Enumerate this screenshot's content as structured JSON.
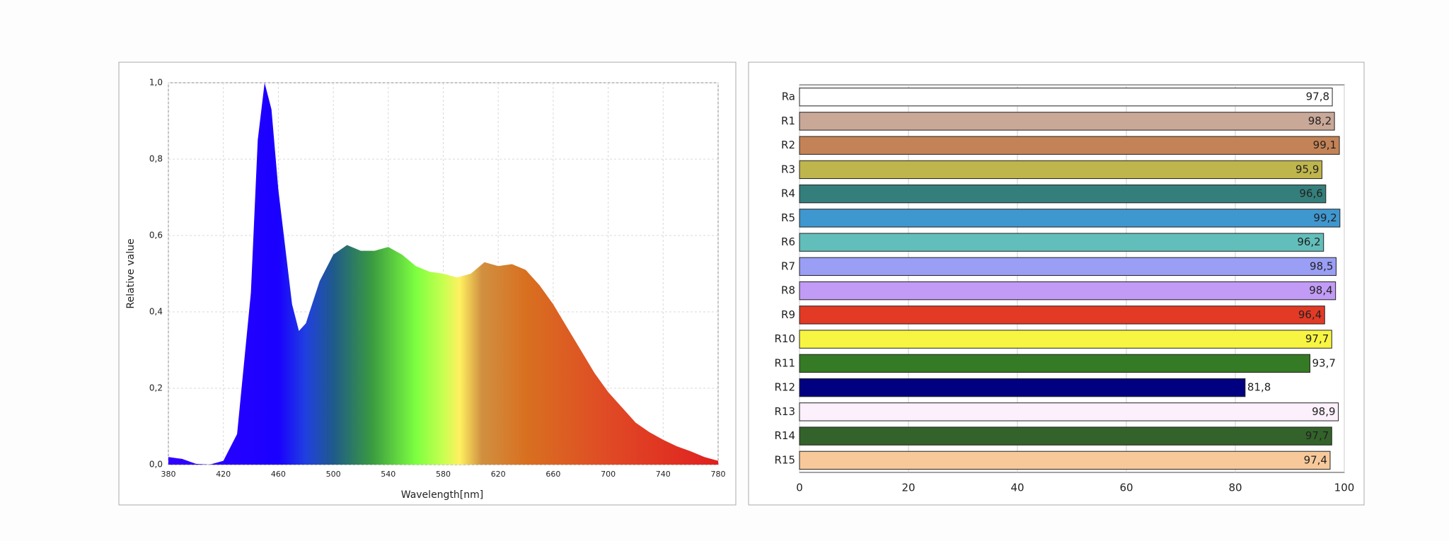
{
  "chart_data": [
    {
      "type": "area",
      "xlabel": "Wavelength[nm]",
      "ylabel": "Relative value",
      "x": [
        380,
        390,
        400,
        410,
        420,
        430,
        440,
        445,
        450,
        455,
        460,
        470,
        475,
        480,
        490,
        500,
        510,
        520,
        530,
        540,
        550,
        560,
        570,
        580,
        590,
        600,
        610,
        620,
        630,
        640,
        650,
        660,
        670,
        680,
        690,
        700,
        710,
        720,
        730,
        740,
        750,
        760,
        770,
        780
      ],
      "values": [
        0.02,
        0.015,
        0.002,
        0.0,
        0.01,
        0.08,
        0.45,
        0.85,
        1.0,
        0.93,
        0.72,
        0.42,
        0.35,
        0.37,
        0.48,
        0.55,
        0.575,
        0.56,
        0.56,
        0.57,
        0.55,
        0.52,
        0.505,
        0.5,
        0.49,
        0.5,
        0.53,
        0.52,
        0.525,
        0.51,
        0.47,
        0.42,
        0.36,
        0.3,
        0.24,
        0.19,
        0.15,
        0.11,
        0.085,
        0.065,
        0.048,
        0.035,
        0.02,
        0.01
      ],
      "xlim": [
        380,
        780
      ],
      "xticks": [
        380,
        420,
        460,
        500,
        540,
        580,
        620,
        660,
        700,
        740,
        780
      ],
      "ylim": [
        0,
        1
      ],
      "yticks": [
        {
          "value": 0,
          "label": "0,0"
        },
        {
          "value": 0.2,
          "label": "0,2"
        },
        {
          "value": 0.4,
          "label": "0,4"
        },
        {
          "value": 0.6,
          "label": "0,6"
        },
        {
          "value": 0.8,
          "label": "0,8"
        },
        {
          "value": 1,
          "label": "1,0"
        }
      ],
      "grid": true
    },
    {
      "type": "hbar",
      "categories": [
        "Ra",
        "R1",
        "R2",
        "R3",
        "R4",
        "R5",
        "R6",
        "R7",
        "R8",
        "R9",
        "R10",
        "R11",
        "R12",
        "R13",
        "R14",
        "R15"
      ],
      "values": [
        97.8,
        98.2,
        99.1,
        95.9,
        96.6,
        99.2,
        96.2,
        98.5,
        98.4,
        96.4,
        97.7,
        93.7,
        81.8,
        98.9,
        97.7,
        97.4
      ],
      "value_labels": [
        "97,8",
        "98,2",
        "99,1",
        "95,9",
        "96,6",
        "99,2",
        "96,2",
        "98,5",
        "98,4",
        "96,4",
        "97,7",
        "93,7",
        "81,8",
        "98,9",
        "97,7",
        "97,4"
      ],
      "colors": [
        "#ffffff",
        "#c9a898",
        "#c48356",
        "#bfb54d",
        "#347f7b",
        "#3f97cf",
        "#62beba",
        "#9a9ef5",
        "#c19bf5",
        "#e33a26",
        "#f8f542",
        "#357a24",
        "#000080",
        "#fbf0fb",
        "#33632a",
        "#f7c99a"
      ],
      "xlim": [
        0,
        100
      ],
      "xticks": [
        0,
        20,
        40,
        60,
        80,
        100
      ],
      "grid": true
    }
  ]
}
